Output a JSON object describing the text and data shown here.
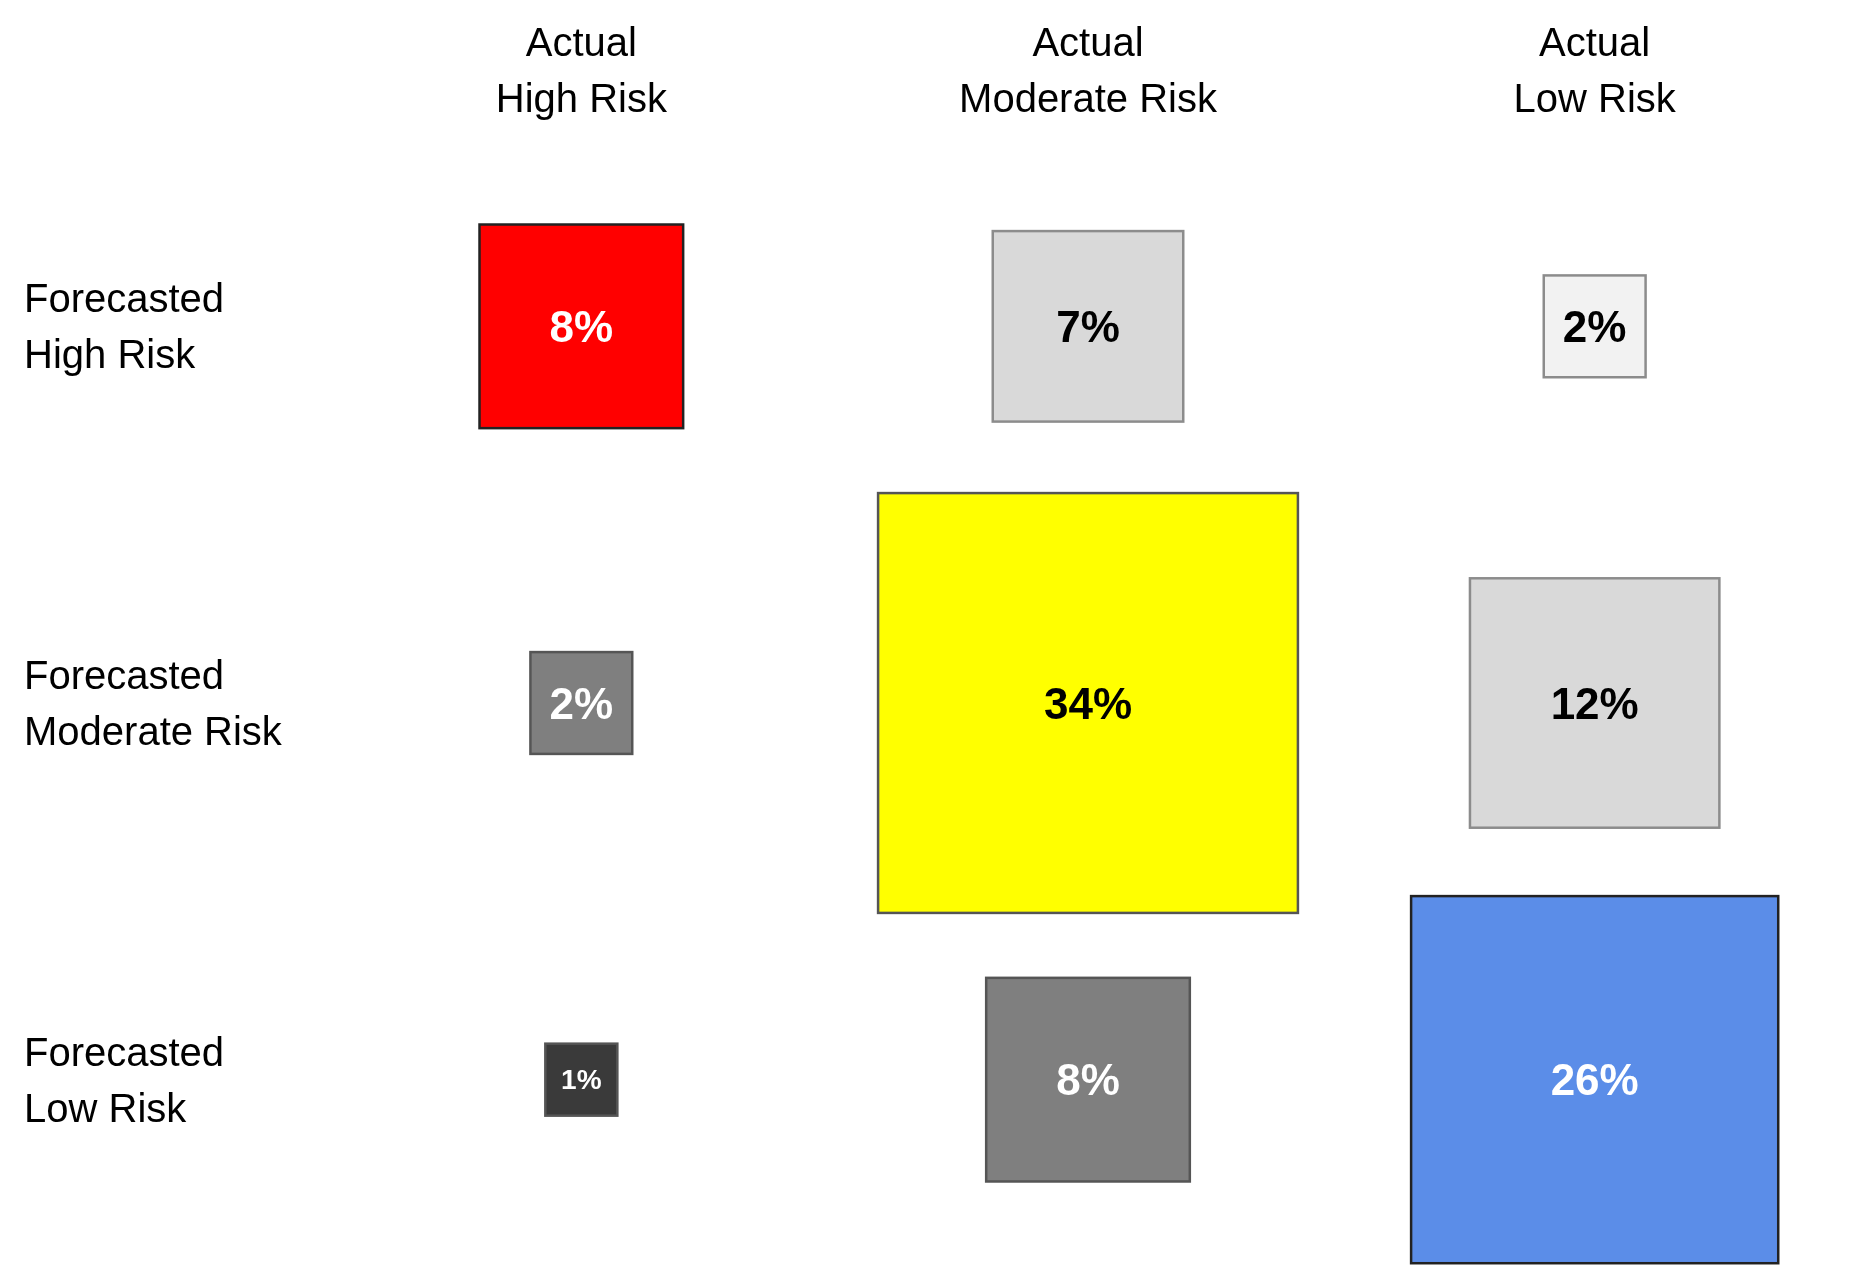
{
  "chart_data": {
    "type": "heatmap",
    "categories": [
      "Actual High Risk",
      "Actual Moderate Risk",
      "Actual Low Risk"
    ],
    "y_categories": [
      "Forecasted High Risk",
      "Forecasted Moderate Risk",
      "Forecasted Low Risk"
    ],
    "cells": [
      [
        8,
        7,
        2
      ],
      [
        2,
        34,
        12
      ],
      [
        1,
        8,
        26
      ]
    ],
    "cell_labels": [
      [
        "8%",
        "7%",
        "2%"
      ],
      [
        "2%",
        "34%",
        "12%"
      ],
      [
        "1%",
        "8%",
        "26%"
      ]
    ],
    "colors": [
      [
        "#ff0000",
        "#d9d9d9",
        "#f2f2f2"
      ],
      [
        "#7f7f7f",
        "#ffff00",
        "#d9d9d9"
      ],
      [
        "#3a3a3a",
        "#7f7f7f",
        "#5b8de8"
      ]
    ]
  }
}
